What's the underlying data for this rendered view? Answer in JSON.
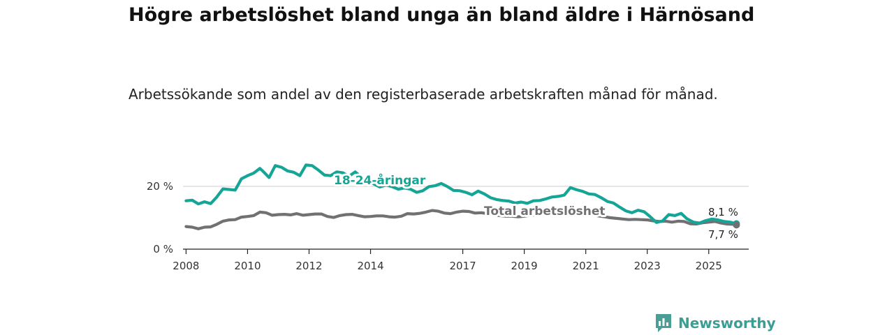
{
  "title": "Högre arbetslöshet bland unga än bland äldre i Härnösand",
  "subtitle": "Arbetssökande som andel av den registerbaserade arbetskraften månad för månad.",
  "brand": {
    "name": "Newsworthy",
    "icon": "bar-chart-icon",
    "color": "#4a9e96"
  },
  "chart_data": {
    "type": "line",
    "title": "Högre arbetslöshet bland unga än bland äldre i Härnösand",
    "ylim": [
      0,
      30
    ],
    "xlim": [
      2007.9,
      2026.3
    ],
    "y_ticks": [
      0,
      20
    ],
    "y_tick_labels": [
      "0 %",
      "20 %"
    ],
    "x_ticks": [
      2008,
      2010,
      2012,
      2014,
      2017,
      2019,
      2021,
      2023,
      2025
    ],
    "x_tick_labels": [
      "2008",
      "2010",
      "2012",
      "2014",
      "2017",
      "2019",
      "2021",
      "2023",
      "2025"
    ],
    "grid": true,
    "series": [
      {
        "name": "18-24-åringar",
        "label": "18-24-åringar",
        "color": "#14a596",
        "end_label": "8,1 %",
        "points": [
          [
            2008.0,
            15.4
          ],
          [
            2008.2,
            15.6
          ],
          [
            2008.4,
            14.4
          ],
          [
            2008.6,
            15.1
          ],
          [
            2008.8,
            14.5
          ],
          [
            2009.0,
            16.6
          ],
          [
            2009.2,
            19.2
          ],
          [
            2009.4,
            19.0
          ],
          [
            2009.6,
            18.8
          ],
          [
            2009.8,
            22.4
          ],
          [
            2010.0,
            23.4
          ],
          [
            2010.2,
            24.2
          ],
          [
            2010.4,
            25.7
          ],
          [
            2010.5,
            24.8
          ],
          [
            2010.7,
            22.8
          ],
          [
            2010.9,
            26.6
          ],
          [
            2011.1,
            26.1
          ],
          [
            2011.3,
            24.9
          ],
          [
            2011.5,
            24.5
          ],
          [
            2011.7,
            23.4
          ],
          [
            2011.9,
            26.8
          ],
          [
            2012.1,
            26.6
          ],
          [
            2012.3,
            25.2
          ],
          [
            2012.5,
            23.6
          ],
          [
            2012.7,
            23.4
          ],
          [
            2012.9,
            24.6
          ],
          [
            2013.1,
            24.3
          ],
          [
            2013.3,
            23.2
          ],
          [
            2013.5,
            24.6
          ],
          [
            2013.7,
            23.0
          ],
          [
            2013.9,
            21.5
          ],
          [
            2014.1,
            20.8
          ],
          [
            2014.3,
            19.8
          ],
          [
            2014.5,
            20.4
          ],
          [
            2014.7,
            19.9
          ],
          [
            2014.9,
            19.1
          ],
          [
            2015.1,
            19.5
          ],
          [
            2015.3,
            19.1
          ],
          [
            2015.5,
            18.1
          ],
          [
            2015.7,
            18.6
          ],
          [
            2015.9,
            19.9
          ],
          [
            2016.1,
            20.2
          ],
          [
            2016.3,
            20.9
          ],
          [
            2016.5,
            19.9
          ],
          [
            2016.7,
            18.7
          ],
          [
            2016.9,
            18.6
          ],
          [
            2017.1,
            18.1
          ],
          [
            2017.3,
            17.3
          ],
          [
            2017.5,
            18.5
          ],
          [
            2017.7,
            17.6
          ],
          [
            2017.9,
            16.4
          ],
          [
            2018.1,
            15.8
          ],
          [
            2018.3,
            15.5
          ],
          [
            2018.5,
            15.3
          ],
          [
            2018.7,
            14.7
          ],
          [
            2018.9,
            15.0
          ],
          [
            2019.1,
            14.6
          ],
          [
            2019.3,
            15.4
          ],
          [
            2019.5,
            15.5
          ],
          [
            2019.7,
            16.0
          ],
          [
            2019.9,
            16.6
          ],
          [
            2020.1,
            16.8
          ],
          [
            2020.3,
            17.2
          ],
          [
            2020.5,
            19.6
          ],
          [
            2020.7,
            18.9
          ],
          [
            2020.9,
            18.4
          ],
          [
            2021.1,
            17.6
          ],
          [
            2021.3,
            17.4
          ],
          [
            2021.5,
            16.4
          ],
          [
            2021.7,
            15.2
          ],
          [
            2021.9,
            14.7
          ],
          [
            2022.1,
            13.4
          ],
          [
            2022.3,
            12.2
          ],
          [
            2022.5,
            11.6
          ],
          [
            2022.7,
            12.4
          ],
          [
            2022.9,
            11.9
          ],
          [
            2023.1,
            10.3
          ],
          [
            2023.3,
            8.5
          ],
          [
            2023.5,
            9.0
          ],
          [
            2023.7,
            11.0
          ],
          [
            2023.9,
            10.7
          ],
          [
            2024.1,
            11.4
          ],
          [
            2024.3,
            9.6
          ],
          [
            2024.5,
            8.6
          ],
          [
            2024.7,
            8.3
          ],
          [
            2024.9,
            9.1
          ],
          [
            2025.1,
            9.6
          ],
          [
            2025.3,
            9.3
          ],
          [
            2025.5,
            8.8
          ],
          [
            2025.7,
            8.6
          ],
          [
            2025.9,
            8.1
          ]
        ]
      },
      {
        "name": "Total arbetslöshet",
        "label": "Total arbetslöshet",
        "color": "#737074",
        "end_label": "7,7 %",
        "points": [
          [
            2008.0,
            7.2
          ],
          [
            2008.2,
            7.0
          ],
          [
            2008.4,
            6.5
          ],
          [
            2008.6,
            7.0
          ],
          [
            2008.8,
            7.1
          ],
          [
            2009.0,
            7.9
          ],
          [
            2009.2,
            8.9
          ],
          [
            2009.4,
            9.3
          ],
          [
            2009.6,
            9.4
          ],
          [
            2009.8,
            10.2
          ],
          [
            2010.0,
            10.4
          ],
          [
            2010.2,
            10.7
          ],
          [
            2010.4,
            11.8
          ],
          [
            2010.6,
            11.6
          ],
          [
            2010.8,
            10.8
          ],
          [
            2011.0,
            11.0
          ],
          [
            2011.2,
            11.1
          ],
          [
            2011.4,
            10.9
          ],
          [
            2011.6,
            11.3
          ],
          [
            2011.8,
            10.8
          ],
          [
            2012.0,
            11.0
          ],
          [
            2012.2,
            11.2
          ],
          [
            2012.4,
            11.2
          ],
          [
            2012.6,
            10.4
          ],
          [
            2012.8,
            10.1
          ],
          [
            2013.0,
            10.7
          ],
          [
            2013.2,
            11.0
          ],
          [
            2013.4,
            11.1
          ],
          [
            2013.6,
            10.7
          ],
          [
            2013.8,
            10.3
          ],
          [
            2014.0,
            10.4
          ],
          [
            2014.2,
            10.6
          ],
          [
            2014.4,
            10.6
          ],
          [
            2014.6,
            10.3
          ],
          [
            2014.8,
            10.2
          ],
          [
            2015.0,
            10.5
          ],
          [
            2015.2,
            11.3
          ],
          [
            2015.4,
            11.2
          ],
          [
            2015.6,
            11.4
          ],
          [
            2015.8,
            11.8
          ],
          [
            2016.0,
            12.3
          ],
          [
            2016.2,
            12.1
          ],
          [
            2016.4,
            11.5
          ],
          [
            2016.6,
            11.3
          ],
          [
            2016.8,
            11.8
          ],
          [
            2017.0,
            12.1
          ],
          [
            2017.2,
            12.0
          ],
          [
            2017.4,
            11.5
          ],
          [
            2017.6,
            11.6
          ],
          [
            2017.8,
            11.3
          ],
          [
            2018.0,
            11.0
          ],
          [
            2018.2,
            10.7
          ],
          [
            2018.4,
            10.5
          ],
          [
            2018.6,
            10.5
          ],
          [
            2018.8,
            10.3
          ],
          [
            2019.0,
            10.5
          ],
          [
            2019.2,
            10.8
          ],
          [
            2019.4,
            10.9
          ],
          [
            2019.6,
            11.1
          ],
          [
            2019.8,
            11.5
          ],
          [
            2020.0,
            11.8
          ],
          [
            2020.2,
            12.0
          ],
          [
            2020.4,
            12.4
          ],
          [
            2020.6,
            12.4
          ],
          [
            2020.8,
            11.9
          ],
          [
            2021.0,
            11.5
          ],
          [
            2021.2,
            11.0
          ],
          [
            2021.4,
            10.6
          ],
          [
            2021.6,
            10.3
          ],
          [
            2021.8,
            10.0
          ],
          [
            2022.0,
            9.8
          ],
          [
            2022.2,
            9.6
          ],
          [
            2022.4,
            9.4
          ],
          [
            2022.6,
            9.5
          ],
          [
            2022.8,
            9.4
          ],
          [
            2023.0,
            9.3
          ],
          [
            2023.2,
            9.0
          ],
          [
            2023.4,
            8.8
          ],
          [
            2023.6,
            8.9
          ],
          [
            2023.8,
            8.6
          ],
          [
            2024.0,
            8.9
          ],
          [
            2024.2,
            8.8
          ],
          [
            2024.4,
            8.1
          ],
          [
            2024.6,
            8.0
          ],
          [
            2024.8,
            8.4
          ],
          [
            2025.0,
            8.6
          ],
          [
            2025.2,
            8.8
          ],
          [
            2025.4,
            8.3
          ],
          [
            2025.6,
            8.0
          ],
          [
            2025.8,
            7.9
          ],
          [
            2025.9,
            7.7
          ]
        ]
      }
    ]
  }
}
